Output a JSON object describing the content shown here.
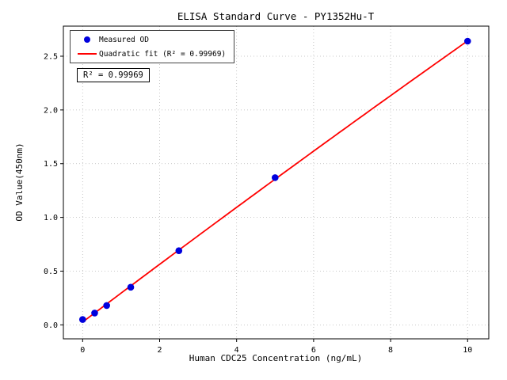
{
  "chart": {
    "legend": [
      {
        "label": "Measured OD",
        "marker": "dot",
        "color": "#0000dd"
      },
      {
        "label": "Quadratic fit (R² = 0.99969)",
        "marker": "line",
        "color": "#ff0000"
      }
    ],
    "annotation": "R² = 0.99969"
  },
  "chart_data": {
    "type": "scatter",
    "title": "ELISA Standard Curve - PY1352Hu-T",
    "xlabel": "Human CDC25 Concentration (ng/mL)",
    "ylabel": "OD Value(450nm)",
    "x": [
      0,
      0.3125,
      0.625,
      1.25,
      2.5,
      5,
      10
    ],
    "y": [
      0.05,
      0.11,
      0.18,
      0.35,
      0.69,
      1.37,
      2.64
    ],
    "fit": "quadratic",
    "r_squared": 0.99969,
    "xticks": [
      "0",
      "2",
      "4",
      "6",
      "8",
      "10"
    ],
    "yticks": [
      "0.0",
      "0.5",
      "1.0",
      "1.5",
      "2.0",
      "2.5"
    ],
    "xlim": [
      -0.5,
      10.55
    ],
    "ylim": [
      -0.13,
      2.78
    ],
    "grid": true,
    "legend_position": "upper left",
    "colors": {
      "points": "#0000dd",
      "fit_line": "#ff0000",
      "grid": "#b8b8b8",
      "spine": "#000000"
    }
  }
}
